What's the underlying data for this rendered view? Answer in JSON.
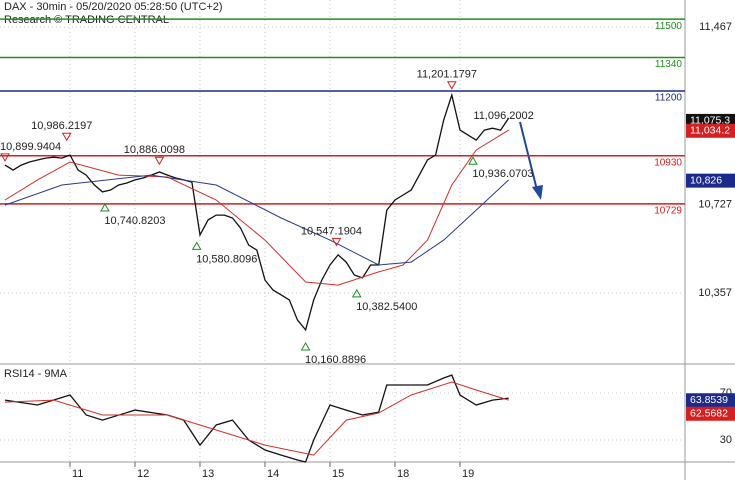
{
  "chart_data": [
    {
      "type": "line",
      "title": "DAX - 30min - 05/20/2020 05:28:50 (UTC+2)",
      "subtitle": "Research © TRADING CENTRAL",
      "xlim": [
        -0.615,
        83.7
      ],
      "ylim": [
        10069,
        11580
      ],
      "xticks": [
        {
          "value": 8,
          "label": "11"
        },
        {
          "value": 16,
          "label": "12"
        },
        {
          "value": 24,
          "label": "13"
        },
        {
          "value": 32,
          "label": "14"
        },
        {
          "value": 40,
          "label": "15"
        },
        {
          "value": 48,
          "label": "18"
        },
        {
          "value": 56,
          "label": "19"
        }
      ],
      "yticks": [
        {
          "value": 11467,
          "label": "11,467"
        },
        {
          "value": 10727,
          "label": "10,727"
        },
        {
          "value": 10357,
          "label": "10,357"
        }
      ],
      "grid": true,
      "series": [
        {
          "color": "#111111",
          "x": [
            0,
            1,
            2,
            3,
            4,
            5,
            6,
            7,
            8,
            9,
            10,
            11,
            12,
            13,
            14,
            15,
            16,
            17,
            18,
            19,
            20,
            21,
            22,
            23,
            24,
            25,
            26,
            27,
            28,
            29,
            30,
            31,
            32,
            33,
            34,
            35,
            36,
            37,
            38,
            39,
            40,
            41,
            42,
            43,
            44,
            45,
            46,
            47,
            48,
            49,
            50,
            51,
            52,
            53,
            54,
            55,
            56,
            57,
            58,
            59,
            60,
            61,
            62
          ],
          "values": [
            10891,
            10870,
            10891,
            10904,
            10912,
            10920,
            10924,
            10920,
            10933,
            10870,
            10849,
            10808,
            10779,
            10787,
            10808,
            10816,
            10829,
            10837,
            10849,
            10862,
            10849,
            10837,
            10829,
            10820,
            10599,
            10662,
            10682,
            10682,
            10670,
            10628,
            10557,
            10536,
            10411,
            10369,
            10349,
            10328,
            10244,
            10203,
            10328,
            10411,
            10474,
            10516,
            10486,
            10432,
            10420,
            10474,
            10474,
            10703,
            10745,
            10766,
            10787,
            10849,
            10912,
            10933,
            11079,
            11183,
            11037,
            11016,
            10995,
            11037,
            11045,
            11037,
            11087
          ]
        },
        {
          "color": "#d4302a",
          "x": [
            0,
            4,
            8,
            14,
            20,
            26,
            32,
            37,
            41,
            46,
            49,
            52,
            55,
            58,
            62
          ],
          "values": [
            10745,
            10829,
            10904,
            10849,
            10841,
            10745,
            10578,
            10403,
            10390,
            10445,
            10474,
            10578,
            10808,
            10954,
            11037
          ]
        },
        {
          "color": "#2a3a8c",
          "x": [
            0,
            7,
            18,
            26,
            34,
            40,
            46,
            50,
            54,
            58,
            62
          ],
          "values": [
            10724,
            10808,
            10849,
            10808,
            10670,
            10578,
            10474,
            10486,
            10578,
            10703,
            10829
          ]
        }
      ],
      "levels": [
        {
          "value": 11500,
          "color": "#1f8f1f"
        },
        {
          "value": 11340,
          "color": "#1f8f1f"
        },
        {
          "value": 11200,
          "color": "#1c2a8c"
        },
        {
          "value": 10930,
          "color": "#d42020"
        },
        {
          "value": 10729,
          "color": "#d42020"
        }
      ],
      "annotations": [
        {
          "text": "10,899.9404",
          "x": 0,
          "value": 10899.9404,
          "marker": "down"
        },
        {
          "text": "10,986.2197",
          "x": 7.6,
          "value": 10986.2197,
          "marker": "down"
        },
        {
          "text": "10,740.8203",
          "x": 12.3,
          "value": 10740.8203,
          "marker": "up"
        },
        {
          "text": "10,886.0098",
          "x": 19,
          "value": 10886.0098,
          "marker": "down"
        },
        {
          "text": "10,580.8096",
          "x": 23.6,
          "value": 10580.8096,
          "marker": "up"
        },
        {
          "text": "10,160.8896",
          "x": 37,
          "value": 10160.8896,
          "marker": "up"
        },
        {
          "text": "10,547.1904",
          "x": 40.8,
          "value": 10547.1904,
          "marker": "down"
        },
        {
          "text": "10,382.5400",
          "x": 43.3,
          "value": 10382.54,
          "marker": "up"
        },
        {
          "text": "11,201.1797",
          "x": 55,
          "value": 11201.1797,
          "marker": "down"
        },
        {
          "text": "10,936.0703",
          "x": 57.6,
          "value": 10936.0703,
          "marker": "up"
        },
        {
          "text": "11,096.2002",
          "x": 61,
          "value": 11096.2002,
          "marker": "none"
        }
      ],
      "last_labels": [
        {
          "text": "11,075.3",
          "value": 11075.3,
          "color": "#111111"
        },
        {
          "text": "11,034.2",
          "value": 11034.2,
          "color": "#d42020"
        },
        {
          "text": "10,826",
          "value": 10826,
          "color": "#1c2a8c"
        }
      ]
    },
    {
      "type": "line",
      "title": "RSI14 - 9MA",
      "xlim": [
        -0.615,
        83.7
      ],
      "ylim": [
        4.5,
        91.3
      ],
      "yticks": [
        70,
        30
      ],
      "grid": true,
      "series": [
        {
          "color": "#111111",
          "x": [
            0,
            4,
            8,
            10,
            12,
            16,
            20,
            22,
            24,
            26,
            28,
            30,
            32,
            34,
            36,
            37,
            38,
            40,
            42,
            44,
            46,
            47,
            50,
            52,
            54,
            55,
            56,
            58,
            60,
            62
          ],
          "values": [
            64,
            59.8,
            68.3,
            51.3,
            47,
            55.5,
            51.3,
            47,
            25.7,
            42.8,
            47,
            30,
            21.5,
            17.2,
            13,
            11.3,
            30,
            59.8,
            55.5,
            51.3,
            53.8,
            76.8,
            76.8,
            76.8,
            82.8,
            85.3,
            68.3,
            59.8,
            64,
            65.7
          ]
        },
        {
          "color": "#d4302a",
          "x": [
            0,
            6,
            12,
            20,
            26,
            32,
            38,
            42,
            46,
            50,
            55,
            58,
            62
          ],
          "values": [
            62.3,
            64,
            51.3,
            51.3,
            38.5,
            25.7,
            17.2,
            47,
            53,
            68.3,
            79.4,
            72.6,
            64
          ]
        }
      ],
      "last_labels": [
        {
          "text": "63.8539",
          "value": 63.8539,
          "color": "#1c2a8c"
        },
        {
          "text": "62.5682",
          "value": 62.5682,
          "color": "#d42020"
        }
      ]
    }
  ]
}
